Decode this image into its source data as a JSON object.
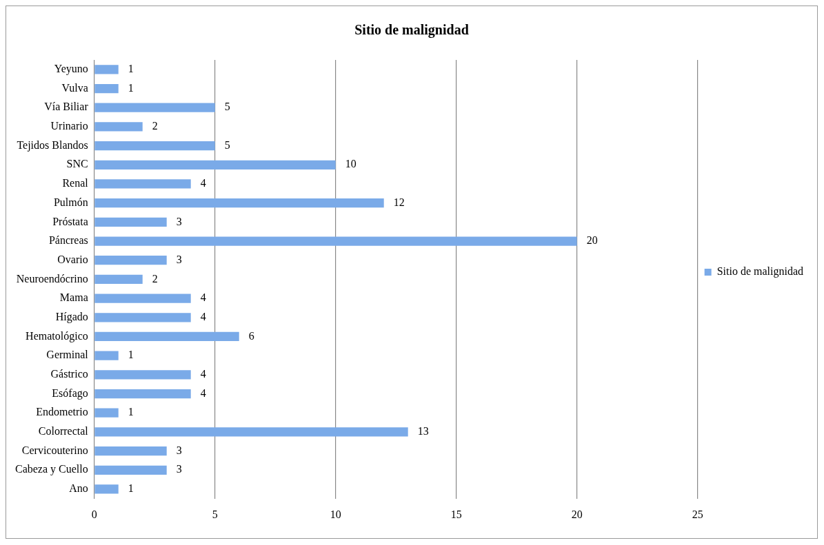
{
  "chart_data": {
    "type": "bar",
    "orientation": "horizontal",
    "title": "Sitio de malignidad",
    "categories": [
      "Yeyuno",
      "Vulva",
      "Vía Biliar",
      "Urinario",
      "Tejidos Blandos",
      "SNC",
      "Renal",
      "Pulmón",
      "Próstata",
      "Páncreas",
      "Ovario",
      "Neuroendócrino",
      "Mama",
      "Hígado",
      "Hematológico",
      "Germinal",
      "Gástrico",
      "Esófago",
      "Endometrio",
      "Colorrectal",
      "Cervicouterino",
      "Cabeza y Cuello",
      "Ano"
    ],
    "series": [
      {
        "name": "Sitio de malignidad",
        "color": "#7aaae8",
        "values": [
          1,
          1,
          5,
          2,
          5,
          10,
          4,
          12,
          3,
          20,
          3,
          2,
          4,
          4,
          6,
          1,
          4,
          4,
          1,
          13,
          3,
          3,
          1
        ]
      }
    ],
    "xlim": [
      0,
      25
    ],
    "xticks": [
      0,
      5,
      10,
      15,
      20,
      25
    ],
    "grid": "x",
    "legend": "right",
    "data_labels": true
  }
}
